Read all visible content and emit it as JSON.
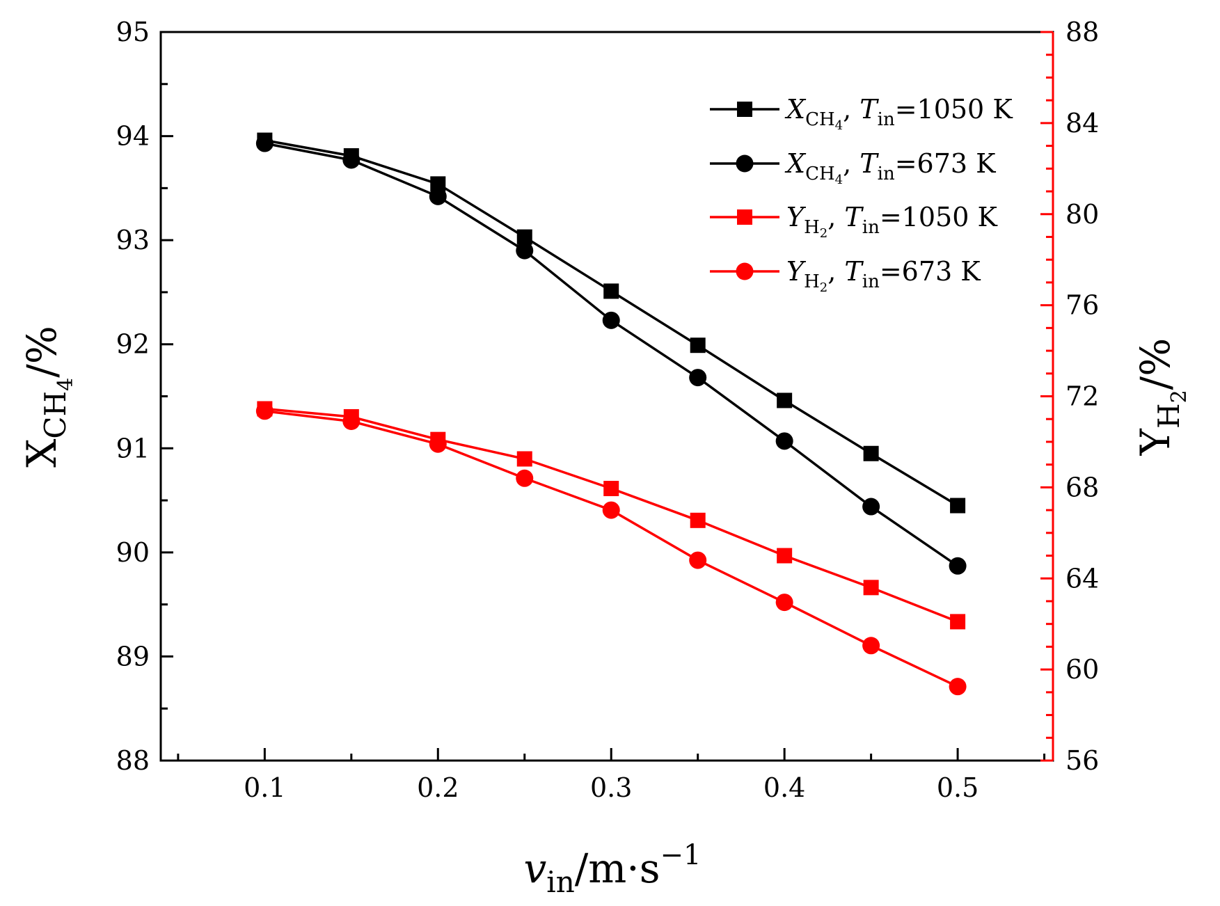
{
  "chart_data": {
    "type": "line",
    "x": [
      0.1,
      0.15,
      0.2,
      0.25,
      0.3,
      0.35,
      0.4,
      0.45,
      0.5
    ],
    "xlabel": {
      "main": "v",
      "sub": "in",
      "tail": "/m·s",
      "sup": "−1"
    },
    "xlim": [
      0.04,
      0.555
    ],
    "xticks": [
      "0.1",
      "0.2",
      "0.3",
      "0.4",
      "0.5"
    ],
    "ylabel_left": {
      "main": "X",
      "sub1": "CH",
      "sub2": "4",
      "tail": "/%"
    },
    "ylim_left": [
      88,
      95
    ],
    "yticks_left": [
      "88",
      "89",
      "90",
      "91",
      "92",
      "93",
      "94",
      "95"
    ],
    "ylabel_right": {
      "main": "Y",
      "sub1": "H",
      "sub2": "2",
      "tail": "/%"
    },
    "ylim_right": [
      56,
      88
    ],
    "yticks_right": [
      "56",
      "60",
      "64",
      "68",
      "72",
      "76",
      "80",
      "84",
      "88"
    ],
    "colors": {
      "axis_left": "#000000",
      "axis_right": "#ff0000"
    },
    "series": [
      {
        "name": "X_CH4, T_in=1050 K",
        "legend": {
          "var": "X",
          "sub1": "CH",
          "sub2": "4",
          "tsub": "in",
          "value": "=1050 K"
        },
        "axis": "left",
        "marker": "square",
        "color": "#000000",
        "values": [
          93.96,
          93.81,
          93.54,
          93.03,
          92.51,
          91.99,
          91.46,
          90.95,
          90.45
        ]
      },
      {
        "name": "X_CH4, T_in=673 K",
        "legend": {
          "var": "X",
          "sub1": "CH",
          "sub2": "4",
          "tsub": "in",
          "value": "=673 K"
        },
        "axis": "left",
        "marker": "circle",
        "color": "#000000",
        "values": [
          93.93,
          93.77,
          93.42,
          92.9,
          92.23,
          91.68,
          91.07,
          90.44,
          89.87
        ]
      },
      {
        "name": "Y_H2, T_in=1050 K",
        "legend": {
          "var": "Y",
          "sub1": "H",
          "sub2": "2",
          "tsub": "in",
          "value": "=1050 K"
        },
        "axis": "right",
        "marker": "square",
        "color": "#ff0000",
        "values": [
          71.45,
          71.1,
          70.1,
          69.25,
          67.95,
          66.55,
          65.0,
          63.6,
          62.1
        ]
      },
      {
        "name": "Y_H2, T_in=673 K",
        "legend": {
          "var": "Y",
          "sub1": "H",
          "sub2": "2",
          "tsub": "in",
          "value": "=673 K"
        },
        "axis": "right",
        "marker": "circle",
        "color": "#ff0000",
        "values": [
          71.35,
          70.9,
          69.9,
          68.4,
          67.0,
          64.8,
          62.95,
          61.05,
          59.25
        ]
      }
    ]
  }
}
